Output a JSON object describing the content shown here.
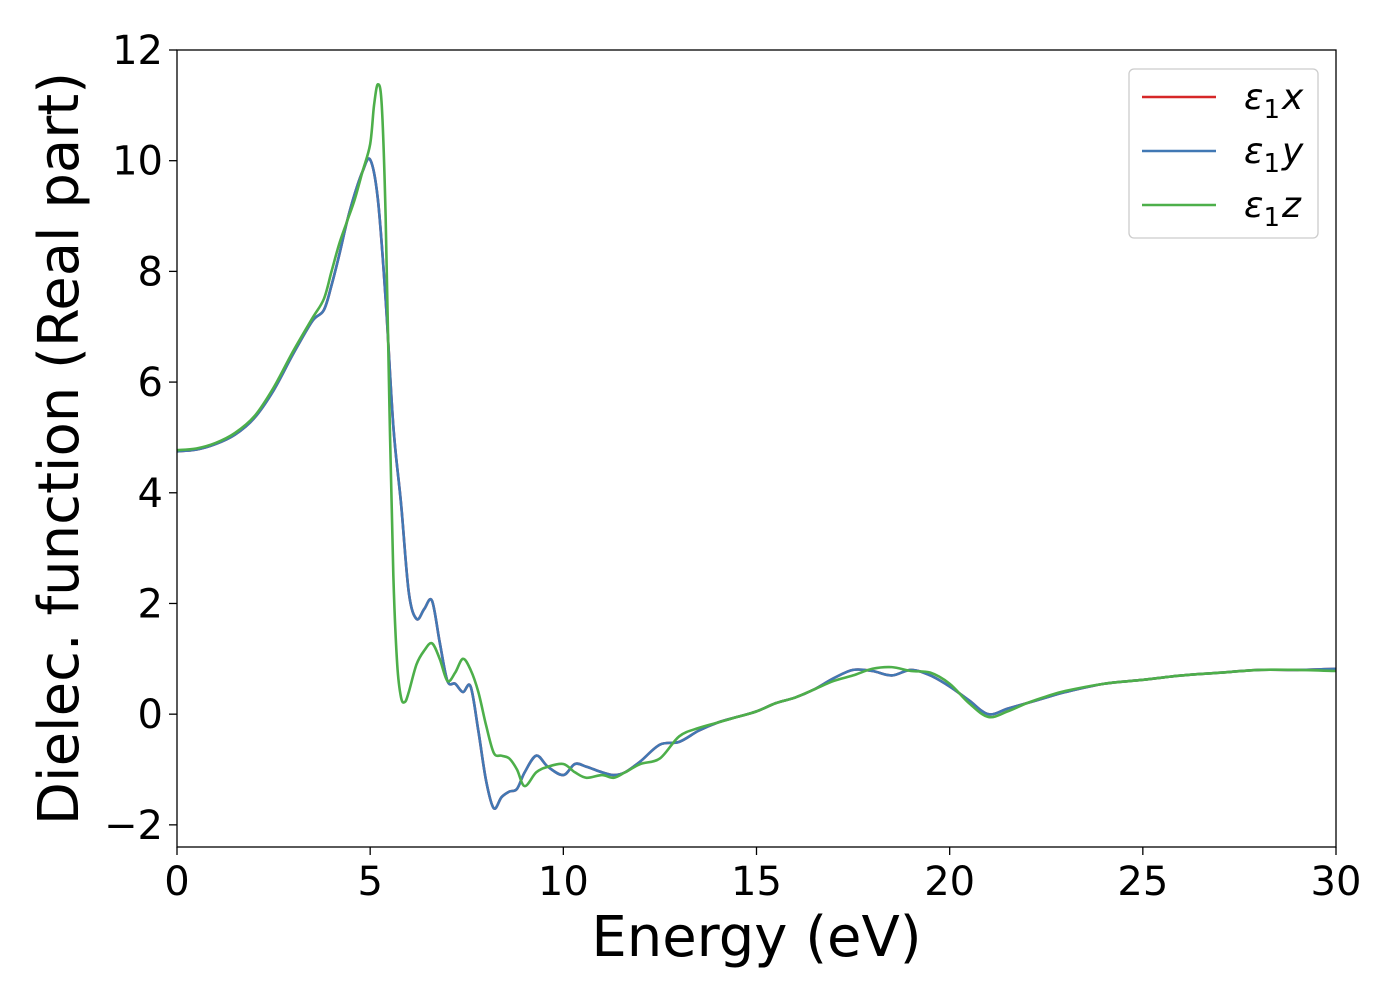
{
  "chart_data": {
    "type": "line",
    "xlabel": "Energy (eV)",
    "ylabel": "Dielec. function (Real part)",
    "xlim": [
      0,
      30
    ],
    "ylim": [
      -2.4,
      12.0
    ],
    "xticks": [
      0,
      5,
      10,
      15,
      20,
      25,
      30
    ],
    "xtick_labels": [
      "0",
      "5",
      "10",
      "15",
      "20",
      "25",
      "30"
    ],
    "yticks": [
      -2,
      0,
      2,
      4,
      6,
      8,
      10,
      12
    ],
    "ytick_labels": [
      "−2",
      "0",
      "2",
      "4",
      "6",
      "8",
      "10",
      "12"
    ],
    "grid": false,
    "legend_position": "top-right",
    "series": [
      {
        "name": "ε₁x",
        "legend_main": "ε",
        "legend_sub": "1",
        "legend_tail": "x",
        "color": "#d62728",
        "x": [
          0,
          0.5,
          1,
          1.5,
          2,
          2.5,
          3,
          3.5,
          3.8,
          4.0,
          4.2,
          4.4,
          4.6,
          4.8,
          5.0,
          5.2,
          5.4,
          5.6,
          5.8,
          6.0,
          6.2,
          6.4,
          6.6,
          6.8,
          7.0,
          7.2,
          7.4,
          7.6,
          7.8,
          8.0,
          8.2,
          8.4,
          8.6,
          8.8,
          9.0,
          9.3,
          9.6,
          10.0,
          10.3,
          10.6,
          11.0,
          11.3,
          11.6,
          12.0,
          12.5,
          13.0,
          13.5,
          14.0,
          14.5,
          15.0,
          15.5,
          16.0,
          16.5,
          17.0,
          17.5,
          18.0,
          18.5,
          19.0,
          19.5,
          20.0,
          20.5,
          21.0,
          21.5,
          22.0,
          22.5,
          23.0,
          24.0,
          25.0,
          26.0,
          27.0,
          28.0,
          29.0,
          30.0
        ],
        "y": [
          4.75,
          4.78,
          4.88,
          5.05,
          5.35,
          5.85,
          6.5,
          7.1,
          7.3,
          7.75,
          8.3,
          8.9,
          9.4,
          9.8,
          10.02,
          9.3,
          7.5,
          5.2,
          3.8,
          2.2,
          1.72,
          1.9,
          2.05,
          1.3,
          0.6,
          0.55,
          0.4,
          0.5,
          -0.3,
          -1.2,
          -1.7,
          -1.5,
          -1.4,
          -1.35,
          -1.05,
          -0.75,
          -0.95,
          -1.1,
          -0.9,
          -0.95,
          -1.05,
          -1.1,
          -1.05,
          -0.85,
          -0.55,
          -0.5,
          -0.3,
          -0.15,
          -0.05,
          0.05,
          0.2,
          0.3,
          0.45,
          0.65,
          0.8,
          0.78,
          0.7,
          0.8,
          0.7,
          0.5,
          0.25,
          0.0,
          0.1,
          0.2,
          0.3,
          0.4,
          0.55,
          0.62,
          0.7,
          0.75,
          0.8,
          0.8,
          0.82
        ]
      },
      {
        "name": "ε₁y",
        "legend_main": "ε",
        "legend_sub": "1",
        "legend_tail": "y",
        "color": "#4178b4",
        "x": [
          0,
          0.5,
          1,
          1.5,
          2,
          2.5,
          3,
          3.5,
          3.8,
          4.0,
          4.2,
          4.4,
          4.6,
          4.8,
          5.0,
          5.2,
          5.4,
          5.6,
          5.8,
          6.0,
          6.2,
          6.4,
          6.6,
          6.8,
          7.0,
          7.2,
          7.4,
          7.6,
          7.8,
          8.0,
          8.2,
          8.4,
          8.6,
          8.8,
          9.0,
          9.3,
          9.6,
          10.0,
          10.3,
          10.6,
          11.0,
          11.3,
          11.6,
          12.0,
          12.5,
          13.0,
          13.5,
          14.0,
          14.5,
          15.0,
          15.5,
          16.0,
          16.5,
          17.0,
          17.5,
          18.0,
          18.5,
          19.0,
          19.5,
          20.0,
          20.5,
          21.0,
          21.5,
          22.0,
          22.5,
          23.0,
          24.0,
          25.0,
          26.0,
          27.0,
          28.0,
          29.0,
          30.0
        ],
        "y": [
          4.75,
          4.78,
          4.88,
          5.05,
          5.35,
          5.85,
          6.5,
          7.1,
          7.3,
          7.75,
          8.3,
          8.9,
          9.4,
          9.8,
          10.02,
          9.3,
          7.5,
          5.2,
          3.8,
          2.2,
          1.72,
          1.9,
          2.05,
          1.3,
          0.6,
          0.55,
          0.4,
          0.5,
          -0.3,
          -1.2,
          -1.7,
          -1.5,
          -1.4,
          -1.35,
          -1.05,
          -0.75,
          -0.95,
          -1.1,
          -0.9,
          -0.95,
          -1.05,
          -1.1,
          -1.05,
          -0.85,
          -0.55,
          -0.5,
          -0.3,
          -0.15,
          -0.05,
          0.05,
          0.2,
          0.3,
          0.45,
          0.65,
          0.8,
          0.78,
          0.7,
          0.8,
          0.7,
          0.5,
          0.25,
          0.0,
          0.1,
          0.2,
          0.3,
          0.4,
          0.55,
          0.62,
          0.7,
          0.75,
          0.8,
          0.8,
          0.82
        ]
      },
      {
        "name": "ε₁z",
        "legend_main": "ε",
        "legend_sub": "1",
        "legend_tail": "z",
        "color": "#4daf4a",
        "x": [
          0,
          0.5,
          1,
          1.5,
          2,
          2.5,
          3,
          3.5,
          3.8,
          4.0,
          4.2,
          4.4,
          4.6,
          4.8,
          5.0,
          5.1,
          5.2,
          5.3,
          5.4,
          5.5,
          5.6,
          5.7,
          5.8,
          5.9,
          6.0,
          6.2,
          6.4,
          6.6,
          6.8,
          7.0,
          7.2,
          7.4,
          7.6,
          7.8,
          8.0,
          8.2,
          8.4,
          8.6,
          8.8,
          9.0,
          9.3,
          9.6,
          10.0,
          10.3,
          10.6,
          11.0,
          11.3,
          11.6,
          12.0,
          12.5,
          13.0,
          13.5,
          14.0,
          14.5,
          15.0,
          15.5,
          16.0,
          16.5,
          17.0,
          17.5,
          18.0,
          18.5,
          19.0,
          19.5,
          20.0,
          20.5,
          21.0,
          21.5,
          22.0,
          22.5,
          23.0,
          24.0,
          25.0,
          26.0,
          27.0,
          28.0,
          29.0,
          30.0
        ],
        "y": [
          4.77,
          4.8,
          4.9,
          5.08,
          5.38,
          5.9,
          6.55,
          7.15,
          7.5,
          8.0,
          8.5,
          8.9,
          9.3,
          9.8,
          10.3,
          11.0,
          11.38,
          11.0,
          9.0,
          5.5,
          2.5,
          0.9,
          0.3,
          0.22,
          0.4,
          0.9,
          1.15,
          1.28,
          1.0,
          0.6,
          0.75,
          1.0,
          0.8,
          0.4,
          -0.2,
          -0.7,
          -0.75,
          -0.8,
          -1.0,
          -1.3,
          -1.05,
          -0.95,
          -0.9,
          -1.05,
          -1.15,
          -1.1,
          -1.15,
          -1.05,
          -0.9,
          -0.8,
          -0.4,
          -0.25,
          -0.15,
          -0.05,
          0.05,
          0.2,
          0.3,
          0.45,
          0.6,
          0.7,
          0.82,
          0.85,
          0.78,
          0.75,
          0.55,
          0.2,
          -0.05,
          0.05,
          0.2,
          0.32,
          0.42,
          0.55,
          0.62,
          0.7,
          0.75,
          0.8,
          0.8,
          0.78
        ]
      }
    ]
  }
}
